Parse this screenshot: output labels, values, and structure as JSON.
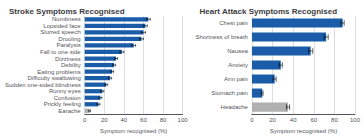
{
  "chart_data": [
    {
      "type": "bar",
      "orientation": "horizontal",
      "title": "Stroke Symptoms Recognised",
      "xlabel": "Symptom recognised (%)",
      "categories": [
        "Numbness",
        "Lopsided face",
        "Slurred speech",
        "Drooling",
        "Paralysis",
        "Fall to one side",
        "Dizziness",
        "Debility",
        "Eating problems",
        "Difficulty swallowing",
        "Sudden one-sided blindness",
        "Runny eyes",
        "Confusion",
        "Prickly feeling",
        "Earache"
      ],
      "values": [
        65,
        62,
        60,
        58,
        50,
        38,
        32,
        30,
        28,
        26,
        22,
        18,
        16,
        14,
        5
      ],
      "colors": [
        "#1a5ca8",
        "#1a5ca8",
        "#1a5ca8",
        "#1a5ca8",
        "#1a5ca8",
        "#1a5ca8",
        "#1a5ca8",
        "#1a5ca8",
        "#1a5ca8",
        "#1a5ca8",
        "#1a5ca8",
        "#1a5ca8",
        "#1a5ca8",
        "#1a5ca8",
        "#b0b0b0"
      ],
      "errors": [
        2,
        2,
        2,
        2,
        2,
        2,
        1.5,
        1.5,
        1.5,
        1.5,
        1.5,
        1.5,
        1.5,
        1.5,
        0.8
      ],
      "xlim": [
        0,
        100
      ],
      "xticks": [
        0,
        20,
        40,
        60,
        80,
        100
      ],
      "grid": true
    },
    {
      "type": "bar",
      "orientation": "horizontal",
      "title": "Heart Attack Symptoms Recognised",
      "xlabel": "Symptom recognised (%)",
      "categories": [
        "Chest pain",
        "Shortness of breath",
        "Nausea",
        "Anxiety",
        "Arm pain",
        "Stomach pain",
        "Headache"
      ],
      "values": [
        88,
        72,
        57,
        28,
        22,
        10,
        35
      ],
      "colors": [
        "#1a5ca8",
        "#1a5ca8",
        "#1a5ca8",
        "#1a5ca8",
        "#1a5ca8",
        "#1a5ca8",
        "#b0b0b0"
      ],
      "errors": [
        1.5,
        2,
        2,
        1.5,
        1.5,
        0.8,
        1.5
      ],
      "xlim": [
        0,
        100
      ],
      "xticks": [
        0,
        20,
        40,
        60,
        80,
        100
      ],
      "grid": true
    }
  ]
}
